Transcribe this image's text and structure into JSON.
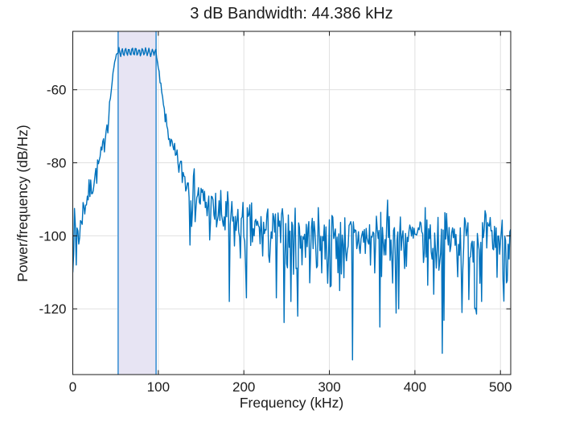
{
  "figure": {
    "background": "#ffffff"
  },
  "chart_data": {
    "type": "line",
    "title": "3 dB Bandwidth: 44.386 kHz",
    "xlabel": "Frequency (kHz)",
    "ylabel": "Power/frequency (dB/Hz)",
    "xlim": [
      0,
      512
    ],
    "ylim": [
      -138,
      -44
    ],
    "xticks": [
      0,
      100,
      200,
      300,
      400,
      500
    ],
    "yticks": [
      -60,
      -80,
      -100,
      -120
    ],
    "grid": true,
    "grid_color": "#e0e0e0",
    "axis_color": "#1b1b1b",
    "tick_label_color": "#1b1b1b",
    "line_color": "#0072BD",
    "band": {
      "f_low_khz": 53.0,
      "f_high_khz": 97.386,
      "bandwidth_khz": 44.386,
      "peak_db": -49.7,
      "threshold_db": -52.7,
      "fill_color": "#e7e4f3",
      "edge_color": "#4f9bd8"
    },
    "ripple": {
      "amplitude_db": 1.05,
      "period_khz": 3.9
    },
    "noise": {
      "seed": 7,
      "sigma_profile": [
        [
          0,
          2.6
        ],
        [
          9,
          2.0
        ],
        [
          20,
          1.5
        ],
        [
          40,
          0.9
        ],
        [
          47,
          0.35
        ],
        [
          53,
          0
        ],
        [
          96,
          0
        ],
        [
          100,
          0.35
        ],
        [
          112,
          0.9
        ],
        [
          125,
          1.7
        ],
        [
          140,
          2.5
        ],
        [
          160,
          3.1
        ],
        [
          180,
          3.3
        ],
        [
          512,
          3.3
        ]
      ]
    },
    "psd_envelope": [
      [
        0,
        -110
      ],
      [
        1,
        -97
      ],
      [
        3,
        -99
      ],
      [
        5,
        -97
      ],
      [
        8,
        -101
      ],
      [
        10,
        -94
      ],
      [
        13,
        -92
      ],
      [
        16,
        -90
      ],
      [
        20,
        -87.5
      ],
      [
        24,
        -85
      ],
      [
        28,
        -82
      ],
      [
        32,
        -79
      ],
      [
        35,
        -76
      ],
      [
        38,
        -72
      ],
      [
        41,
        -68
      ],
      [
        43,
        -64
      ],
      [
        45,
        -60
      ],
      [
        47,
        -56
      ],
      [
        49,
        -52.5
      ],
      [
        51,
        -50.2
      ],
      [
        53,
        -49.7
      ],
      [
        97,
        -49.7
      ],
      [
        99,
        -52.6
      ],
      [
        101,
        -56
      ],
      [
        104,
        -61
      ],
      [
        107,
        -66
      ],
      [
        110,
        -70
      ],
      [
        114,
        -74
      ],
      [
        119,
        -78
      ],
      [
        125,
        -81
      ],
      [
        131,
        -84
      ],
      [
        140,
        -87
      ],
      [
        150,
        -90
      ],
      [
        162,
        -93
      ],
      [
        175,
        -95
      ],
      [
        190,
        -97
      ],
      [
        210,
        -98.5
      ],
      [
        240,
        -99.5
      ],
      [
        280,
        -100.3
      ],
      [
        330,
        -100.8
      ],
      [
        400,
        -101
      ],
      [
        512,
        -101
      ]
    ],
    "notable_minima": [
      [
        0,
        -110
      ],
      [
        4,
        -108
      ],
      [
        183,
        -118
      ],
      [
        203,
        -117
      ],
      [
        238,
        -117
      ],
      [
        255,
        -118
      ],
      [
        263,
        -122
      ],
      [
        298,
        -113
      ],
      [
        312,
        -115
      ],
      [
        327,
        -134
      ],
      [
        359,
        -125
      ],
      [
        381,
        -120
      ],
      [
        422,
        -116
      ],
      [
        455,
        -121
      ],
      [
        470,
        -120
      ],
      [
        478,
        -118
      ],
      [
        503,
        -112
      ]
    ]
  }
}
